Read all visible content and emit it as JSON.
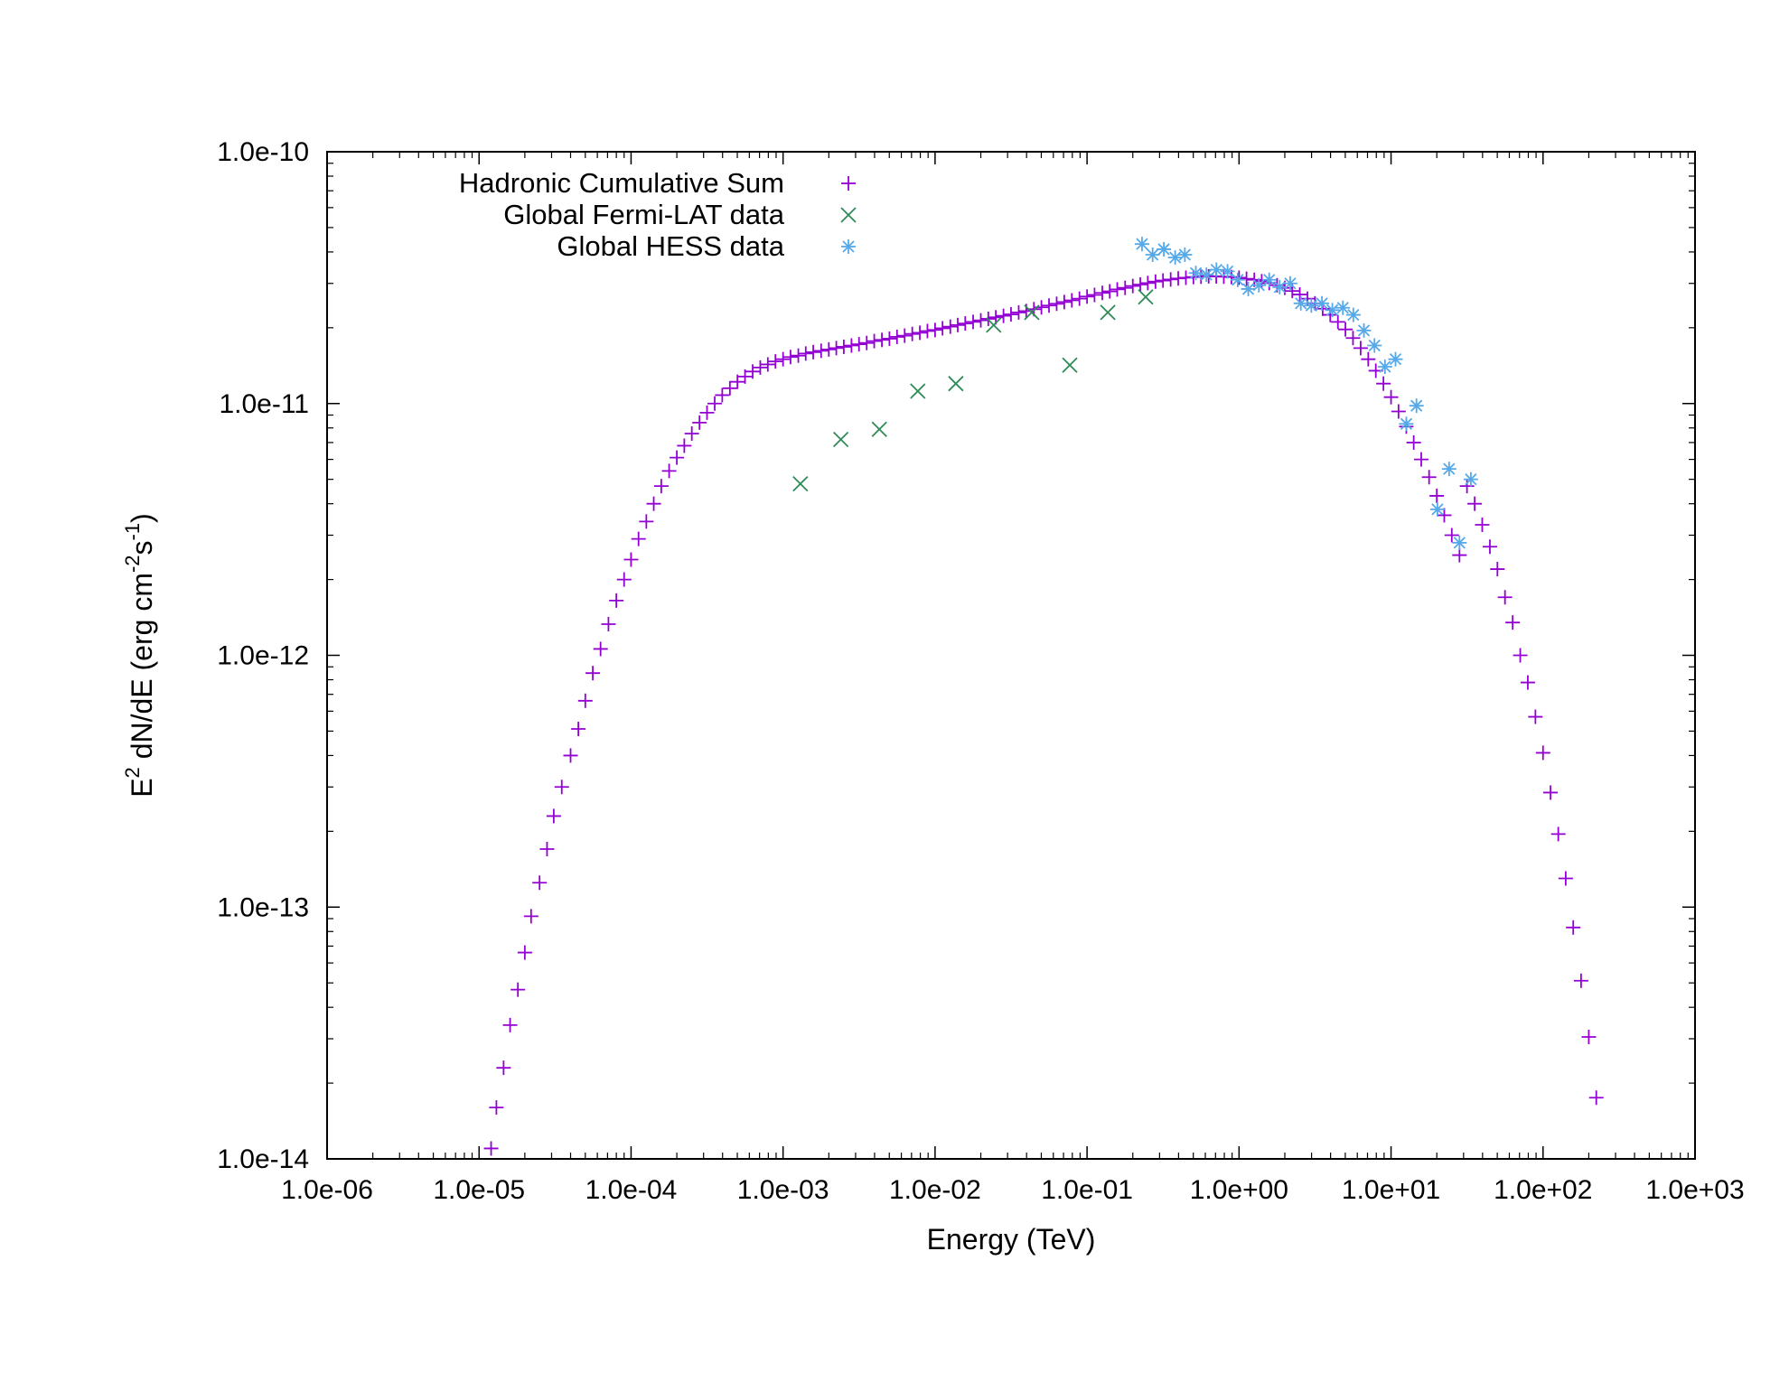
{
  "chart_data": {
    "type": "scatter",
    "title": "",
    "xlabel": "Energy (TeV)",
    "ylabel": "E^2 dN/dE (erg cm^-2 s^-1)",
    "ylabel_parts": {
      "base": "E",
      "sup1": "2",
      "mid": " dN/dE (erg cm",
      "sup2": "-2",
      "mid2": "s",
      "sup3": "-1",
      "end": ")"
    },
    "xscale": "log",
    "yscale": "log",
    "xlim": [
      1e-06,
      1000.0
    ],
    "ylim": [
      1e-14,
      1e-10
    ],
    "x_tick_labels": [
      "1.0e-06",
      "1.0e-05",
      "1.0e-04",
      "1.0e-03",
      "1.0e-02",
      "1.0e-01",
      "1.0e+00",
      "1.0e+01",
      "1.0e+02",
      "1.0e+03"
    ],
    "y_tick_labels": [
      "1.0e-14",
      "1.0e-13",
      "1.0e-12",
      "1.0e-11",
      "1.0e-10"
    ],
    "grid": false,
    "legend_position": "top-left",
    "series": [
      {
        "name": "Hadronic Cumulative Sum",
        "marker": "plus",
        "color": "#9400d3",
        "points": [
          [
            1.2e-05,
            1.1e-14
          ],
          [
            1.3e-05,
            1.6e-14
          ],
          [
            1.45e-05,
            2.3e-14
          ],
          [
            1.6e-05,
            3.4e-14
          ],
          [
            1.8e-05,
            4.7e-14
          ],
          [
            2e-05,
            6.6e-14
          ],
          [
            2.2e-05,
            9.2e-14
          ],
          [
            2.5e-05,
            1.25e-13
          ],
          [
            2.8e-05,
            1.7e-13
          ],
          [
            3.1e-05,
            2.3e-13
          ],
          [
            3.5e-05,
            3e-13
          ],
          [
            4e-05,
            4e-13
          ],
          [
            4.5e-05,
            5.1e-13
          ],
          [
            5e-05,
            6.6e-13
          ],
          [
            5.6e-05,
            8.5e-13
          ],
          [
            6.3e-05,
            1.06e-12
          ],
          [
            7.1e-05,
            1.33e-12
          ],
          [
            8e-05,
            1.65e-12
          ],
          [
            9e-05,
            2e-12
          ],
          [
            0.0001,
            2.4e-12
          ],
          [
            0.000112,
            2.9e-12
          ],
          [
            0.000126,
            3.4e-12
          ],
          [
            0.000141,
            4e-12
          ],
          [
            0.000158,
            4.7e-12
          ],
          [
            0.000178,
            5.4e-12
          ],
          [
            0.0002,
            6.1e-12
          ],
          [
            0.000224,
            6.8e-12
          ],
          [
            0.000251,
            7.6e-12
          ],
          [
            0.000282,
            8.4e-12
          ],
          [
            0.000316,
            9.2e-12
          ],
          [
            0.000355,
            1e-11
          ],
          [
            0.000398,
            1.08e-11
          ],
          [
            0.000447,
            1.15e-11
          ],
          [
            0.000501,
            1.22e-11
          ],
          [
            0.000562,
            1.28e-11
          ],
          [
            0.000631,
            1.34e-11
          ],
          [
            0.000708,
            1.39e-11
          ],
          [
            0.000794,
            1.43e-11
          ],
          [
            0.000891,
            1.47e-11
          ],
          [
            0.001,
            1.5e-11
          ],
          [
            0.00112,
            1.53e-11
          ],
          [
            0.00126,
            1.55e-11
          ],
          [
            0.00141,
            1.58e-11
          ],
          [
            0.00158,
            1.6e-11
          ],
          [
            0.00178,
            1.62e-11
          ],
          [
            0.002,
            1.64e-11
          ],
          [
            0.00224,
            1.66e-11
          ],
          [
            0.00251,
            1.68e-11
          ],
          [
            0.00282,
            1.7e-11
          ],
          [
            0.00316,
            1.72e-11
          ],
          [
            0.00355,
            1.74e-11
          ],
          [
            0.00398,
            1.77e-11
          ],
          [
            0.00447,
            1.79e-11
          ],
          [
            0.00501,
            1.81e-11
          ],
          [
            0.00562,
            1.84e-11
          ],
          [
            0.00631,
            1.86e-11
          ],
          [
            0.00708,
            1.89e-11
          ],
          [
            0.00794,
            1.91e-11
          ],
          [
            0.00891,
            1.94e-11
          ],
          [
            0.01,
            1.96e-11
          ],
          [
            0.0112,
            1.99e-11
          ],
          [
            0.0126,
            2.02e-11
          ],
          [
            0.0141,
            2.05e-11
          ],
          [
            0.0158,
            2.08e-11
          ],
          [
            0.0178,
            2.11e-11
          ],
          [
            0.02,
            2.14e-11
          ],
          [
            0.0224,
            2.17e-11
          ],
          [
            0.0251,
            2.2e-11
          ],
          [
            0.0282,
            2.23e-11
          ],
          [
            0.0316,
            2.26e-11
          ],
          [
            0.0355,
            2.3e-11
          ],
          [
            0.0398,
            2.33e-11
          ],
          [
            0.0447,
            2.37e-11
          ],
          [
            0.0501,
            2.41e-11
          ],
          [
            0.0562,
            2.45e-11
          ],
          [
            0.0631,
            2.49e-11
          ],
          [
            0.0708,
            2.53e-11
          ],
          [
            0.0794,
            2.57e-11
          ],
          [
            0.0891,
            2.61e-11
          ],
          [
            0.1,
            2.66e-11
          ],
          [
            0.112,
            2.7e-11
          ],
          [
            0.126,
            2.75e-11
          ],
          [
            0.141,
            2.79e-11
          ],
          [
            0.158,
            2.84e-11
          ],
          [
            0.178,
            2.88e-11
          ],
          [
            0.2,
            2.93e-11
          ],
          [
            0.224,
            2.97e-11
          ],
          [
            0.251,
            3.01e-11
          ],
          [
            0.282,
            3.05e-11
          ],
          [
            0.316,
            3.08e-11
          ],
          [
            0.355,
            3.11e-11
          ],
          [
            0.398,
            3.14e-11
          ],
          [
            0.447,
            3.16e-11
          ],
          [
            0.501,
            3.18e-11
          ],
          [
            0.562,
            3.19e-11
          ],
          [
            0.631,
            3.2e-11
          ],
          [
            0.708,
            3.2e-11
          ],
          [
            0.794,
            3.19e-11
          ],
          [
            0.891,
            3.18e-11
          ],
          [
            1.0,
            3.16e-11
          ],
          [
            1.12,
            3.13e-11
          ],
          [
            1.26,
            3.1e-11
          ],
          [
            1.41,
            3.06e-11
          ],
          [
            1.58,
            3.01e-11
          ],
          [
            1.78,
            2.95e-11
          ],
          [
            2.0,
            2.88e-11
          ],
          [
            2.24,
            2.8e-11
          ],
          [
            2.51,
            2.71e-11
          ],
          [
            2.82,
            2.61e-11
          ],
          [
            3.16,
            2.5e-11
          ],
          [
            3.55,
            2.38e-11
          ],
          [
            3.98,
            2.25e-11
          ],
          [
            4.47,
            2.11e-11
          ],
          [
            5.01,
            1.97e-11
          ],
          [
            5.62,
            1.82e-11
          ],
          [
            6.31,
            1.66e-11
          ],
          [
            7.08,
            1.5e-11
          ],
          [
            7.94,
            1.35e-11
          ],
          [
            8.91,
            1.2e-11
          ],
          [
            10.0,
            1.06e-11
          ],
          [
            11.2,
            9.3e-12
          ],
          [
            12.6,
            8.1e-12
          ],
          [
            14.1,
            7e-12
          ],
          [
            15.8,
            6e-12
          ],
          [
            17.8,
            5.1e-12
          ],
          [
            20.0,
            4.3e-12
          ],
          [
            22.4,
            3.6e-12
          ],
          [
            25.1,
            3e-12
          ],
          [
            28.2,
            2.5e-12
          ],
          [
            31.6,
            4.7e-12
          ],
          [
            35.5,
            4e-12
          ],
          [
            39.8,
            3.3e-12
          ],
          [
            44.7,
            2.7e-12
          ],
          [
            50.1,
            2.2e-12
          ],
          [
            56.2,
            1.7e-12
          ],
          [
            63.1,
            1.35e-12
          ],
          [
            70.8,
            1e-12
          ],
          [
            79.4,
            7.8e-13
          ],
          [
            89.1,
            5.7e-13
          ],
          [
            100.0,
            4.1e-13
          ],
          [
            112.0,
            2.85e-13
          ],
          [
            126.0,
            1.95e-13
          ],
          [
            141.0,
            1.3e-13
          ],
          [
            158.0,
            8.3e-14
          ],
          [
            178.0,
            5.1e-14
          ],
          [
            200.0,
            3.05e-14
          ],
          [
            224.0,
            1.75e-14
          ]
        ]
      },
      {
        "name": "Global Fermi-LAT data",
        "marker": "cross",
        "color": "#2e8b57",
        "points": [
          [
            0.0013,
            4.8e-12
          ],
          [
            0.0024,
            7.2e-12
          ],
          [
            0.0043,
            7.9e-12
          ],
          [
            0.0077,
            1.12e-11
          ],
          [
            0.0137,
            1.2e-11
          ],
          [
            0.0243,
            2.05e-11
          ],
          [
            0.0433,
            2.3e-11
          ],
          [
            0.077,
            1.42e-11
          ],
          [
            0.137,
            2.3e-11
          ],
          [
            0.243,
            2.65e-11
          ]
        ]
      },
      {
        "name": "Global HESS data",
        "marker": "star",
        "color": "#56a9e8",
        "points": [
          [
            0.23,
            4.3e-11
          ],
          [
            0.27,
            3.9e-11
          ],
          [
            0.32,
            4.1e-11
          ],
          [
            0.38,
            3.8e-11
          ],
          [
            0.44,
            3.9e-11
          ],
          [
            0.52,
            3.3e-11
          ],
          [
            0.61,
            3.25e-11
          ],
          [
            0.71,
            3.4e-11
          ],
          [
            0.84,
            3.35e-11
          ],
          [
            0.98,
            3.1e-11
          ],
          [
            1.15,
            2.85e-11
          ],
          [
            1.35,
            2.95e-11
          ],
          [
            1.58,
            3.1e-11
          ],
          [
            1.85,
            2.9e-11
          ],
          [
            2.17,
            3e-11
          ],
          [
            2.55,
            2.5e-11
          ],
          [
            2.99,
            2.45e-11
          ],
          [
            3.51,
            2.5e-11
          ],
          [
            4.11,
            2.35e-11
          ],
          [
            4.82,
            2.4e-11
          ],
          [
            5.65,
            2.25e-11
          ],
          [
            6.63,
            1.95e-11
          ],
          [
            7.78,
            1.7e-11
          ],
          [
            9.12,
            1.4e-11
          ],
          [
            10.7,
            1.5e-11
          ],
          [
            12.6,
            8.3e-12
          ],
          [
            14.7,
            9.8e-12
          ],
          [
            20.2,
            3.8e-12
          ],
          [
            24.1,
            5.5e-12
          ],
          [
            28.2,
            2.8e-12
          ],
          [
            33.5,
            5e-12
          ]
        ]
      }
    ]
  }
}
